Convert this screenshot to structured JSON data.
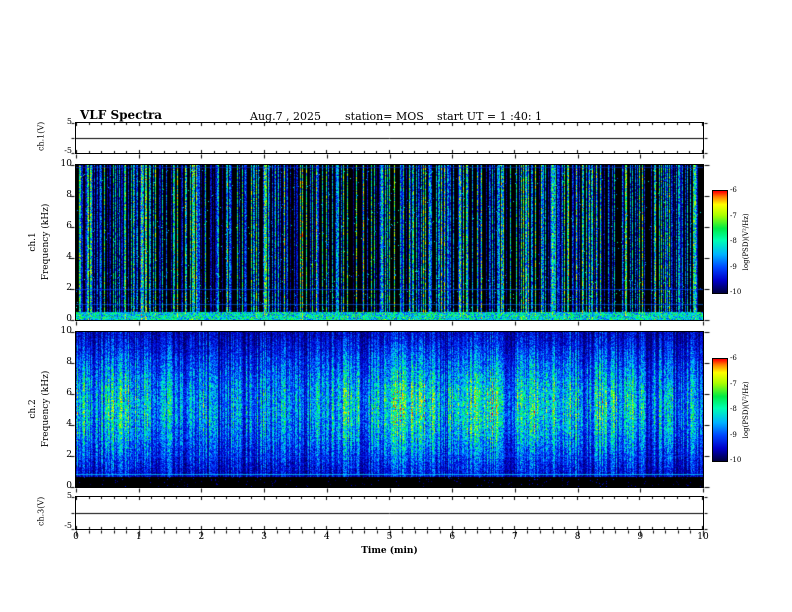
{
  "header": {
    "title": "VLF Spectra",
    "date": "Aug.7 , 2025",
    "station": "station= MOS",
    "start_ut": "start UT =  1 :40: 1"
  },
  "xaxis": {
    "label": "Time (min)",
    "ticks": [
      "0",
      "1",
      "2",
      "3",
      "4",
      "5",
      "6",
      "7",
      "8",
      "9",
      "10"
    ]
  },
  "panels": {
    "ch1_voltage": {
      "label": "ch.1(V)",
      "ymax": "5",
      "ymin": "-5"
    },
    "ch1_spectrogram": {
      "channel": "ch.1",
      "axis": "Frequency (kHz)",
      "yticks": [
        "10",
        "8",
        "6",
        "4",
        "2",
        "0"
      ]
    },
    "ch2_spectrogram": {
      "channel": "ch.2",
      "axis": "Frequency (kHz)",
      "yticks": [
        "10",
        "8",
        "6",
        "4",
        "2",
        "0"
      ]
    },
    "ch3_voltage": {
      "label": "ch.3(V)",
      "ymax": "5",
      "ymin": "-5"
    }
  },
  "colorbar": {
    "label": "log(PSD)(V²/Hz)",
    "ticks": [
      "-6",
      "-7",
      "-8",
      "-9",
      "-10"
    ]
  },
  "colors": {
    "background": "#ffffff",
    "axis": "#000000",
    "colormap_stops": [
      [
        0.0,
        0,
        0,
        0
      ],
      [
        0.08,
        0,
        0,
        80
      ],
      [
        0.18,
        0,
        0,
        200
      ],
      [
        0.3,
        0,
        70,
        255
      ],
      [
        0.42,
        0,
        180,
        255
      ],
      [
        0.55,
        0,
        255,
        180
      ],
      [
        0.66,
        0,
        235,
        70
      ],
      [
        0.78,
        170,
        255,
        0
      ],
      [
        0.88,
        255,
        255,
        0
      ],
      [
        0.95,
        255,
        130,
        0
      ],
      [
        1.0,
        255,
        0,
        0
      ]
    ]
  },
  "chart_data": [
    {
      "type": "line",
      "name": "ch1_voltage_trace",
      "ylabel": "ch.1(V)",
      "xlim": [
        0,
        10
      ],
      "ylim": [
        -5,
        5
      ],
      "x": [
        0,
        10
      ],
      "values": [
        0,
        0
      ],
      "description": "Flat waveform trace at ~0 V across the full 10 minutes"
    },
    {
      "type": "heatmap",
      "name": "ch1_spectrogram",
      "xlabel": "Time (min)",
      "ylabel": "ch.1 Frequency (kHz)",
      "xlim": [
        0,
        10
      ],
      "ylim": [
        0,
        10
      ],
      "zlabel": "log(PSD)(V²/Hz)",
      "zlim": [
        -10,
        -6
      ],
      "description": "Mostly black background with dense vertical impulsive sferic streaks (cyan/green/yellow) spanning 0-10 kHz; bright continuous band below ~0.6 kHz; faint horizontal blue lines near 1 kHz, 2 kHz and the 10 kHz edge.",
      "render": {
        "seed": 811,
        "kind": "sparse",
        "streak_prob": 0.3,
        "faint_prob": 0.18,
        "base": 0.035,
        "bottom_band": 0.055,
        "hlines": [
          {
            "f": 0.2,
            "color": "rgba(0,70,255,0.65)"
          },
          {
            "f": 0.105,
            "color": "rgba(0,110,255,0.55)"
          },
          {
            "f": 0.985,
            "color": "rgba(0,50,220,0.60)"
          }
        ]
      }
    },
    {
      "type": "heatmap",
      "name": "ch2_spectrogram",
      "xlabel": "Time (min)",
      "ylabel": "ch.2 Frequency (kHz)",
      "xlim": [
        0,
        10
      ],
      "ylim": [
        0,
        10
      ],
      "zlabel": "log(PSD)(V²/Hz)",
      "zlim": [
        -10,
        -6
      ],
      "description": "Dense broadband noise: blue background with green/yellow blobs concentrated between ~2 and 8 kHz, many vertical streaks; near-black band below ~0.7 kHz with a narrow cyan line near 0.8 kHz; faint blue line near 2 kHz.",
      "render": {
        "seed": 4027,
        "kind": "dense",
        "streak_prob": 0.45,
        "faint_prob": 0.25,
        "base": 0.1,
        "bottom_band": 0.07,
        "hlines": [
          {
            "f": 0.085,
            "color": "rgba(0,230,255,0.70)"
          },
          {
            "f": 0.2,
            "color": "rgba(0,70,255,0.45)"
          }
        ]
      }
    },
    {
      "type": "line",
      "name": "ch3_voltage_trace",
      "ylabel": "ch.3(V)",
      "xlim": [
        0,
        10
      ],
      "ylim": [
        -5,
        5
      ],
      "x": [
        0,
        10
      ],
      "values": [
        0,
        0
      ],
      "description": "Flat waveform trace at ~0 V across the full 10 minutes"
    }
  ]
}
